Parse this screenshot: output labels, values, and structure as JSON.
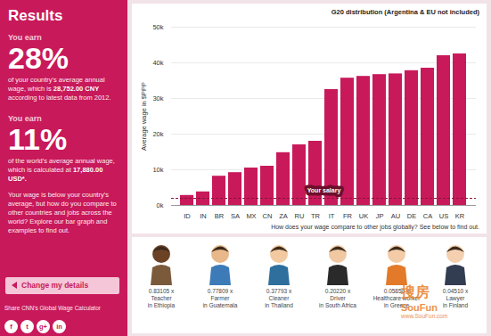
{
  "panel": {
    "title": "Results",
    "blocks": [
      {
        "lead": "You earn",
        "big": "28%",
        "text": "of your country's average annual wage, which is",
        "amount": "28,752.00 CNY",
        "after": "according to latest data from 2012."
      },
      {
        "lead": "You earn",
        "big": "11%",
        "text": "of the world's average annual wage, which is calculated at",
        "amount": "17,880.00 USD*.",
        "after": ""
      }
    ],
    "note": "Your wage is below your country's average, but how do you compare to other countries and jobs across the world? Explore our bar graph and examples to find out.",
    "button": "Change my details",
    "share": "Share CNN's Global Wage Calculator",
    "social": [
      "f",
      "t",
      "g+",
      "in"
    ]
  },
  "chart_data": {
    "type": "bar",
    "title": "G20 distribution (Argentina & EU not included)",
    "ylabel": "Average wage in $PPP",
    "categories": [
      "ID",
      "IN",
      "BR",
      "SA",
      "MX",
      "CN",
      "ZA",
      "RU",
      "TR",
      "IT",
      "FR",
      "UK",
      "JP",
      "AU",
      "DE",
      "CA",
      "US",
      "KR"
    ],
    "values": [
      2800,
      3800,
      8200,
      9200,
      10500,
      11000,
      14800,
      17000,
      18000,
      32500,
      35700,
      36200,
      36700,
      36900,
      37800,
      38500,
      42000,
      42500
    ],
    "color": "#c8195a",
    "ylim": [
      0,
      50000
    ],
    "yticks": [
      {
        "value": 0,
        "label": "0k"
      },
      {
        "value": 10000,
        "label": "10k"
      },
      {
        "value": 20000,
        "label": "20k"
      },
      {
        "value": 30000,
        "label": "30k"
      },
      {
        "value": 40000,
        "label": "40k"
      },
      {
        "value": 50000,
        "label": "50k"
      }
    ],
    "grid": true,
    "your_salary": {
      "label": "Your salary",
      "value": 2000
    },
    "note": "How does your wage compare to other jobs globally? See below to find out."
  },
  "jobs": [
    {
      "ratio": "0.83105 x",
      "job": "Teacher",
      "place": "in Ethiopia"
    },
    {
      "ratio": "0.77809 x",
      "job": "Farmer",
      "place": "in Guatemala"
    },
    {
      "ratio": "0.37793 x",
      "job": "Cleaner",
      "place": "in Thailand"
    },
    {
      "ratio": "0.20220 x",
      "job": "Driver",
      "place": "in South Africa"
    },
    {
      "ratio": "0.05850 x",
      "job": "Healthcare worker",
      "place": "in Greece"
    },
    {
      "ratio": "0.04510 x",
      "job": "Lawyer",
      "place": "in Finland"
    }
  ],
  "watermark": {
    "cn": "搜房",
    "en": "SouFun",
    "url": "www.SouFun.com"
  }
}
